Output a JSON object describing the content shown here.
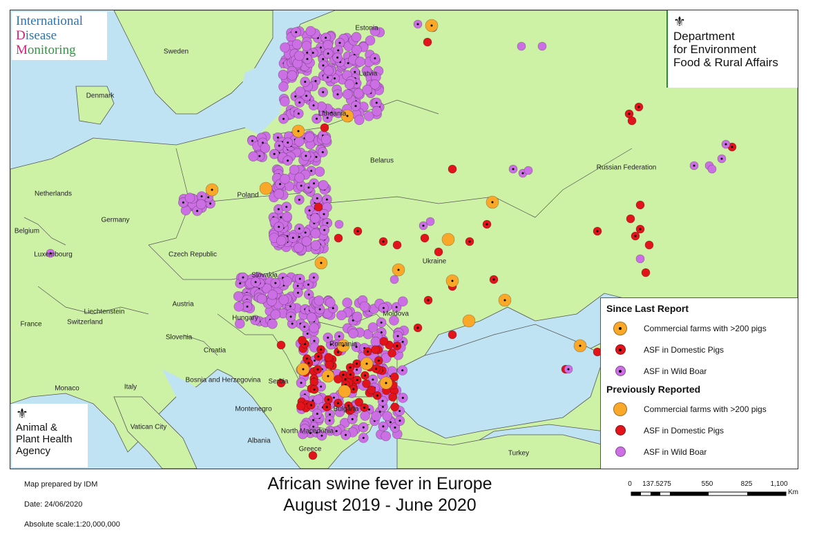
{
  "title_line1": "African swine fever in Europe",
  "title_line2": "August 2019 - June 2020",
  "footer": {
    "prepared_by": "Map prepared by IDM",
    "date": "Date: 24/06/2020",
    "scale": "Absolute scale:1:20,000,000"
  },
  "scale_bar": {
    "labels": [
      "0",
      "137.5275",
      "550",
      "825",
      "1,100"
    ],
    "unit": "Km"
  },
  "logos": {
    "idm_l1": "International",
    "idm_l2_cap": "D",
    "idm_l2_rest": "isease",
    "idm_l3_cap": "M",
    "idm_l3_rest": "onitoring",
    "defra_l1": "Department",
    "defra_l2": "for Environment",
    "defra_l3": "Food & Rural Affairs",
    "apha_l1": "Animal &",
    "apha_l2": "Plant Health",
    "apha_l3": "Agency"
  },
  "legend": {
    "since_heading": "Since Last Report",
    "previous_heading": "Previously Reported",
    "commercial": "Commercial farms with >200 pigs",
    "domestic": "ASF in Domestic Pigs",
    "wild": "ASF in Wild Boar"
  },
  "colors": {
    "land": "#cdf2a6",
    "sea": "#bfe3f2",
    "border": "#555555",
    "commercial": "#f9a82a",
    "domestic": "#e0141a",
    "wild": "#cc6fe4"
  },
  "countries": [
    {
      "name": "Estonia"
    },
    {
      "name": "Sweden"
    },
    {
      "name": "Latvia"
    },
    {
      "name": "Denmark"
    },
    {
      "name": "Lithuania"
    },
    {
      "name": "Belarus"
    },
    {
      "name": "Russian Federation"
    },
    {
      "name": "Netherlands"
    },
    {
      "name": "Poland"
    },
    {
      "name": "Germany"
    },
    {
      "name": "Belgium"
    },
    {
      "name": "Luxembourg"
    },
    {
      "name": "Czech Republic"
    },
    {
      "name": "Ukraine"
    },
    {
      "name": "Slovakia"
    },
    {
      "name": "Austria"
    },
    {
      "name": "Liechtenstein"
    },
    {
      "name": "Hungary"
    },
    {
      "name": "Moldova"
    },
    {
      "name": "France"
    },
    {
      "name": "Switzerland"
    },
    {
      "name": "Slovenia"
    },
    {
      "name": "Romania"
    },
    {
      "name": "Croatia"
    },
    {
      "name": "Bosnia and Herzegovina"
    },
    {
      "name": "Serbia"
    },
    {
      "name": "Monaco"
    },
    {
      "name": "Italy"
    },
    {
      "name": "Montenegro"
    },
    {
      "name": "Bulgaria"
    },
    {
      "name": "Vatican City"
    },
    {
      "name": "North Macedonia"
    },
    {
      "name": "Albania"
    },
    {
      "name": "Greece"
    },
    {
      "name": "Turkey"
    }
  ]
}
